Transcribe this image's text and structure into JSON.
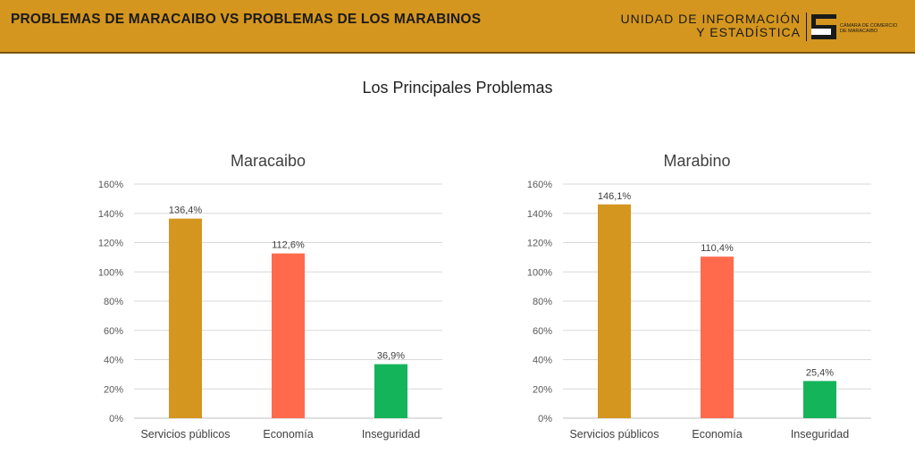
{
  "header": {
    "title": "PROBLEMAS DE MARACAIBO VS PROBLEMAS DE LOS MARABINOS",
    "unit_line1": "UNIDAD DE INFORMACIÓN",
    "unit_line2": "Y ESTADÍSTICA",
    "logo_line1": "CÁMARA DE COMERCIO",
    "logo_line2": "DE MARACAIBO",
    "background_color": "#d4961e"
  },
  "page_title": "Los Principales Problemas",
  "chart_data": [
    {
      "type": "bar",
      "title": "Maracaibo",
      "categories": [
        "Servicios públicos",
        "Economía",
        "Inseguridad"
      ],
      "values": [
        136.4,
        112.6,
        36.9
      ],
      "value_labels": [
        "136,4%",
        "112,6%",
        "36,9%"
      ],
      "colors": [
        "#d4961e",
        "#ff6a4d",
        "#14b45a"
      ],
      "ylim": [
        0,
        160
      ],
      "y_ticks": [
        "0%",
        "20%",
        "40%",
        "60%",
        "80%",
        "100%",
        "120%",
        "140%",
        "160%"
      ],
      "grid": true
    },
    {
      "type": "bar",
      "title": "Marabino",
      "categories": [
        "Servicios públicos",
        "Economía",
        "Inseguridad"
      ],
      "values": [
        146.1,
        110.4,
        25.4
      ],
      "value_labels": [
        "146,1%",
        "110,4%",
        "25,4%"
      ],
      "colors": [
        "#d4961e",
        "#ff6a4d",
        "#14b45a"
      ],
      "ylim": [
        0,
        160
      ],
      "y_ticks": [
        "0%",
        "20%",
        "40%",
        "60%",
        "80%",
        "100%",
        "120%",
        "140%",
        "160%"
      ],
      "grid": true
    }
  ]
}
